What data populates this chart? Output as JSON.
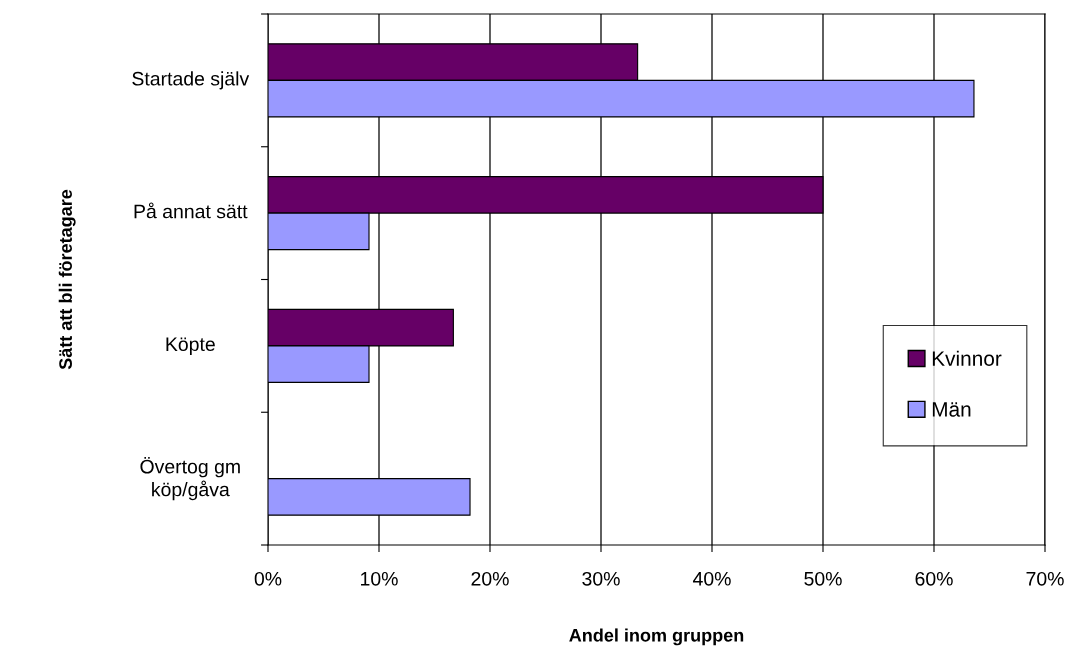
{
  "chart_data": {
    "type": "bar",
    "orientation": "horizontal",
    "xlabel": "Andel inom gruppen",
    "ylabel": "Sätt att bli företagare",
    "categories": [
      "Startade själv",
      "På annat sätt",
      "Köpte",
      "Övertog gm\nköp/gåva"
    ],
    "series": [
      {
        "name": "Kvinnor",
        "color": "#660066",
        "values": [
          33.3,
          50.0,
          16.7,
          0
        ]
      },
      {
        "name": "Män",
        "color": "#9999ff",
        "values": [
          63.6,
          9.1,
          9.1,
          18.2
        ]
      }
    ],
    "xlim": [
      0,
      70
    ],
    "xticks": [
      {
        "value": 0,
        "label": "0%"
      },
      {
        "value": 10,
        "label": "10%"
      },
      {
        "value": 20,
        "label": "20%"
      },
      {
        "value": 30,
        "label": "30%"
      },
      {
        "value": 40,
        "label": "40%"
      },
      {
        "value": 50,
        "label": "50%"
      },
      {
        "value": 60,
        "label": "60%"
      },
      {
        "value": 70,
        "label": "70%"
      }
    ],
    "grid": "x",
    "legend": "right"
  }
}
